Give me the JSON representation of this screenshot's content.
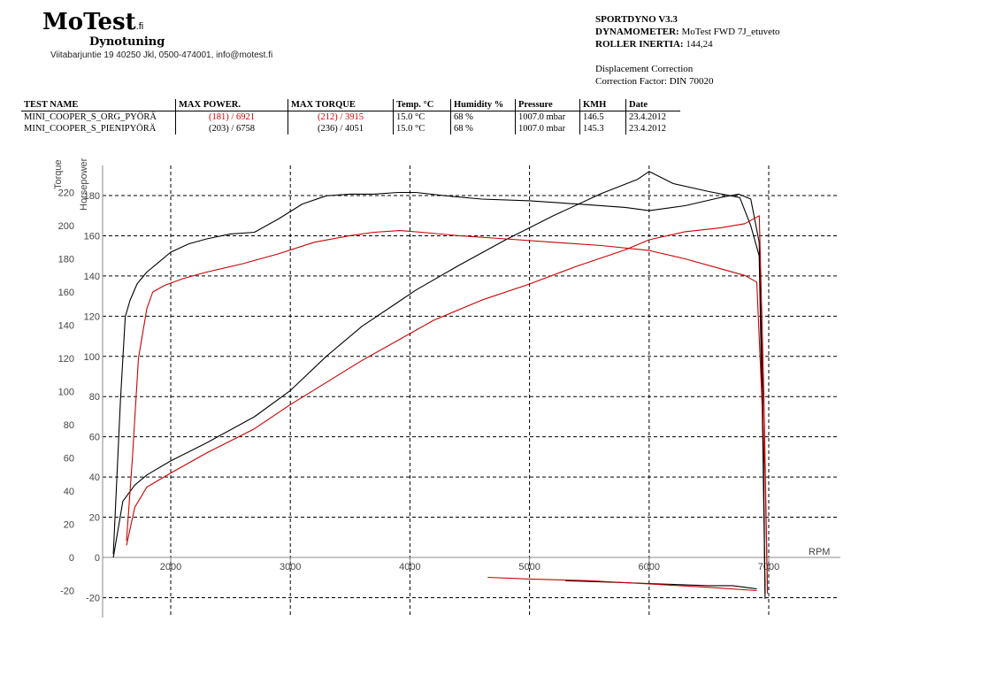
{
  "header": {
    "logo": "MoTest",
    "logo_suffix": ".fi",
    "subtitle": "Dynotuning",
    "address": "Viitabarjuntie 19 40250 Jkl, 0500-474001, info@motest.fi"
  },
  "dyno_info": {
    "software": "SPORTDYNO V3.3",
    "dynamometer_label": "DYNAMOMETER:",
    "dynamometer_value": "MoTest FWD 7J_etuveto",
    "inertia_label": "ROLLER INERTIA:",
    "inertia_value": "144,24",
    "displacement": "Displacement Correction",
    "correction": "Correction Factor: DIN 70020"
  },
  "table": {
    "headers": [
      "TEST NAME",
      "MAX POWER.",
      "MAX TORQUE",
      "Temp. °C",
      "Humidity %",
      "Pressure",
      "KMH",
      "Date"
    ],
    "rows": [
      {
        "name": "MINI_COOPER_S_ORG_PYÖRÄ",
        "power": "(181) / 6921",
        "torque": "(212) / 3915",
        "temp": "15.0 °C",
        "humidity": "68 %",
        "pressure": "1007.0 mbar",
        "kmh": "146.5",
        "date": "23.4.2012",
        "color": "#cc0000"
      },
      {
        "name": "MINI_COOPER_S_PIENIPYÖRÄ",
        "power": "(203) / 6758",
        "torque": "(236) / 4051",
        "temp": "15.0 °C",
        "humidity": "68 %",
        "pressure": "1007.0 mbar",
        "kmh": "145.3",
        "date": "23.4.2012",
        "color": "#000000"
      }
    ]
  },
  "chart_data": {
    "type": "line",
    "xlabel": "RPM",
    "ylabel_torque": "Torque",
    "ylabel_hp": "Horsepower",
    "xlim": [
      1500,
      7600
    ],
    "torque_ticks": [
      220,
      200,
      180,
      160,
      140,
      120,
      100,
      80,
      60,
      40,
      20,
      0,
      -20
    ],
    "hp_ticks": [
      180,
      160,
      140,
      120,
      100,
      80,
      60,
      40,
      20,
      0,
      -20
    ],
    "x_ticks": [
      2000,
      3000,
      4000,
      5000,
      6000,
      7000
    ],
    "grid": true,
    "series": [
      {
        "name": "MINI_COOPER_S_PIENIPYÖRÄ",
        "quantity": "torque",
        "color": "#000000",
        "x": [
          1520,
          1580,
          1620,
          1660,
          1720,
          1800,
          1900,
          2000,
          2150,
          2300,
          2500,
          2700,
          2900,
          3100,
          3300,
          3500,
          3700,
          3900,
          4050,
          4300,
          4600,
          5000,
          5400,
          5800,
          6000,
          6300,
          6600,
          6750,
          6850,
          6920,
          6950,
          6970
        ],
        "y": [
          2,
          95,
          145,
          155,
          165,
          172,
          178,
          184,
          189,
          192,
          195,
          196,
          204,
          213,
          218,
          219,
          219,
          220,
          220,
          218,
          216,
          215,
          213,
          211,
          209,
          212,
          217,
          219,
          216,
          190,
          100,
          -25
        ]
      },
      {
        "name": "MINI_COOPER_S_PIENIPYÖRÄ",
        "quantity": "power",
        "color": "#000000",
        "x": [
          1520,
          1600,
          1700,
          1800,
          2000,
          2300,
          2700,
          3000,
          3300,
          3600,
          3900,
          4050,
          4400,
          4800,
          5200,
          5600,
          5900,
          6000,
          6200,
          6500,
          6758,
          6850,
          6920,
          6950,
          6970
        ],
        "y": [
          0,
          28,
          36,
          41,
          48,
          57,
          70,
          83,
          100,
          115,
          127,
          133,
          145,
          158,
          170,
          181,
          188,
          192,
          186,
          182,
          179,
          165,
          150,
          60,
          -18
        ]
      },
      {
        "name": "MINI_COOPER_S_ORG_PYÖRÄ",
        "quantity": "torque",
        "color": "#cc0000",
        "x": [
          1630,
          1680,
          1730,
          1800,
          1850,
          1950,
          2100,
          2300,
          2600,
          2900,
          3200,
          3500,
          3700,
          3915,
          4100,
          4400,
          4800,
          5200,
          5600,
          6000,
          6300,
          6600,
          6800,
          6900,
          6940,
          6970,
          6990
        ],
        "y": [
          10,
          60,
          120,
          150,
          160,
          164,
          168,
          172,
          177,
          183,
          190,
          194,
          196,
          197,
          196,
          194,
          192,
          190,
          188,
          185,
          180,
          174,
          170,
          166,
          100,
          50,
          -20
        ]
      },
      {
        "name": "MINI_COOPER_S_ORG_PYÖRÄ",
        "quantity": "power",
        "color": "#cc0000",
        "x": [
          1630,
          1700,
          1800,
          2000,
          2300,
          2700,
          3000,
          3300,
          3600,
          3900,
          4200,
          4600,
          5000,
          5400,
          5800,
          6000,
          6300,
          6600,
          6800,
          6921,
          6960,
          6990
        ],
        "y": [
          6,
          25,
          35,
          42,
          52,
          64,
          76,
          87,
          98,
          108,
          118,
          128,
          136,
          145,
          153,
          158,
          162,
          164,
          166,
          170,
          80,
          -18
        ]
      },
      {
        "name": "MINI_COOPER_S_PIENIPYÖRÄ",
        "quantity": "loss",
        "color": "#000000",
        "x": [
          5300,
          5700,
          6100,
          6500,
          6700,
          6900
        ],
        "y": [
          -14,
          -15,
          -16,
          -17,
          -17,
          -19
        ]
      },
      {
        "name": "MINI_COOPER_S_ORG_PYÖRÄ",
        "quantity": "loss",
        "color": "#cc0000",
        "x": [
          4650,
          5000,
          5500,
          6000,
          6500,
          6900
        ],
        "y": [
          -12,
          -13,
          -14,
          -16,
          -18,
          -20
        ]
      }
    ]
  }
}
